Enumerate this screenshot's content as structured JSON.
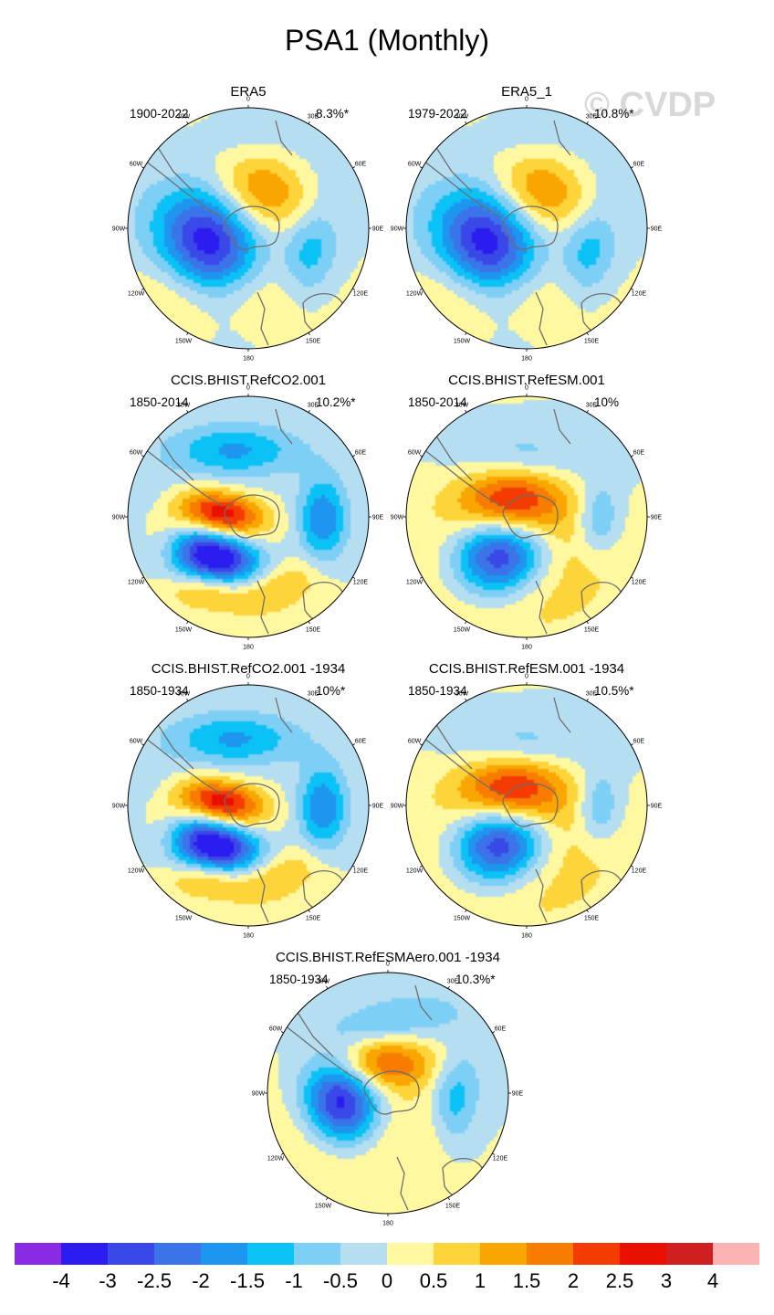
{
  "figure_title": "PSA1 (Monthly)",
  "watermark": "© CVDP",
  "longitude_labels": [
    "0",
    "30E",
    "60E",
    "90E",
    "120E",
    "150E",
    "180",
    "150W",
    "120W",
    "90W",
    "60W",
    "30W"
  ],
  "panels": [
    {
      "title": "ERA5",
      "years": "1900-2022",
      "pct": "8.3%*",
      "pattern": "era"
    },
    {
      "title": "ERA5_1",
      "years": "1979-2022",
      "pct": "10.8%*",
      "pattern": "era"
    },
    {
      "title": "CCIS.BHIST.RefCO2.001",
      "years": "1850-2014",
      "pct": "10.2%*",
      "pattern": "co2"
    },
    {
      "title": "CCIS.BHIST.RefESM.001",
      "years": "1850-2014",
      "pct": "10%",
      "pattern": "esm"
    },
    {
      "title": "CCIS.BHIST.RefCO2.001 -1934",
      "years": "1850-1934",
      "pct": "10%*",
      "pattern": "co2"
    },
    {
      "title": "CCIS.BHIST.RefESM.001 -1934",
      "years": "1850-1934",
      "pct": "10.5%*",
      "pattern": "esm"
    },
    {
      "title": "CCIS.BHIST.RefESMAero.001 -1934",
      "years": "1850-1934",
      "pct": "10.3%*",
      "pattern": "aero"
    }
  ],
  "colorbar": {
    "colors": [
      "#8a2be2",
      "#2b1cf0",
      "#3a48e8",
      "#3a74e8",
      "#1e96f0",
      "#0ac2f5",
      "#7dcff5",
      "#b5def1",
      "#fff8a0",
      "#fdd43a",
      "#f9a600",
      "#f77c00",
      "#f43b00",
      "#ea1000",
      "#cf1f1f",
      "#fcb3b3"
    ],
    "labels": [
      "-4",
      "-3",
      "-2.5",
      "-2",
      "-1.5",
      "-1",
      "-0.5",
      "0",
      "0.5",
      "1",
      "1.5",
      "2",
      "2.5",
      "3",
      "4"
    ]
  }
}
